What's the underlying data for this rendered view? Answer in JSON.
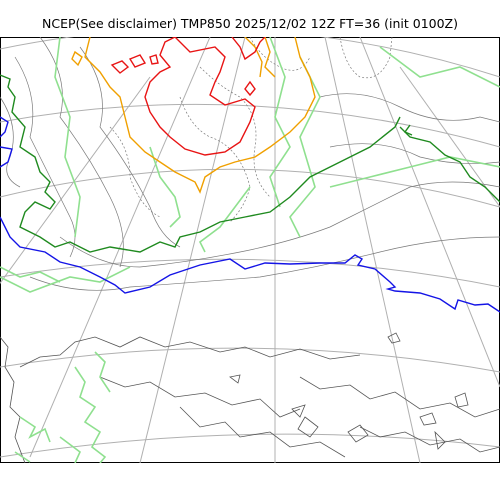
{
  "title": "NCEP(See disclaimer) TMP850 2025/12/02 12Z FT=36 (init 0100Z)",
  "map": {
    "field": "TMP850",
    "source": "NCEP",
    "valid": "2025/12/02 12Z",
    "forecast_hour": "FT=36",
    "init": "0100Z",
    "contour_colors": {
      "land_coast": "#555555",
      "graticule": "#b0b0b0",
      "thin_isotherm": "#7a7a7a",
      "light_green": "#8fe08f",
      "dark_green": "#1f8a1f",
      "blue": "#1414e6",
      "orange": "#f0a000",
      "red": "#e81414"
    }
  }
}
